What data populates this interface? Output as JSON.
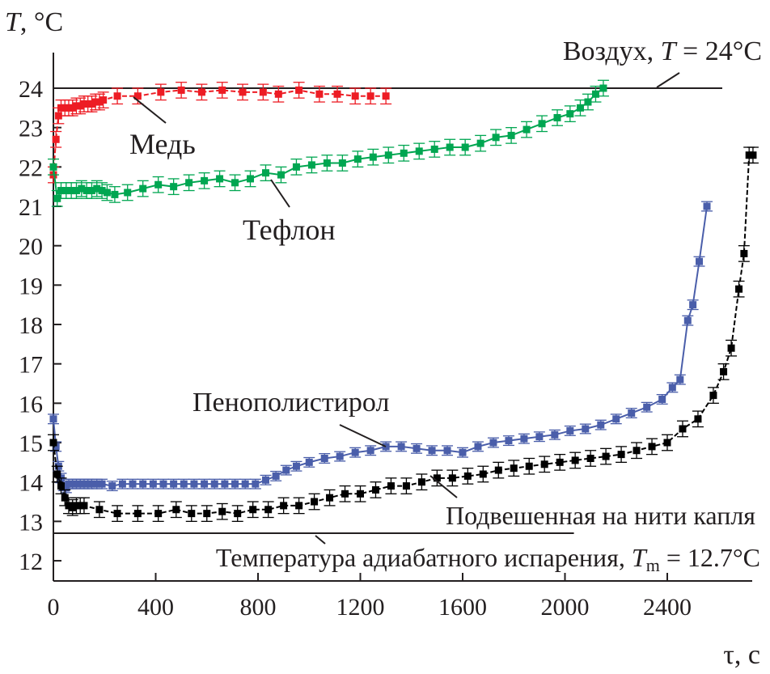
{
  "chart_data": {
    "type": "scatter",
    "ylabel_var": "T",
    "ylabel_unit": ", °C",
    "xlabel": "τ, с",
    "xlim": [
      0,
      2800
    ],
    "ylim": [
      11.7,
      25.2
    ],
    "xticks": [
      "0",
      "400",
      "800",
      "1200",
      "1600",
      "2000",
      "2400"
    ],
    "xtick_values": [
      0,
      400,
      800,
      1200,
      1600,
      2000,
      2400
    ],
    "yticks": [
      "12",
      "13",
      "14",
      "15",
      "16",
      "17",
      "18",
      "19",
      "20",
      "21",
      "22",
      "23",
      "24"
    ],
    "ytick_values": [
      12,
      13,
      14,
      15,
      16,
      17,
      18,
      19,
      20,
      21,
      22,
      23,
      24
    ],
    "reference_lines": [
      {
        "name": "air",
        "value": 24,
        "x_end": 2615,
        "label_prefix": "Воздух, ",
        "label_var": "T",
        "label_suffix": " = 24°C"
      },
      {
        "name": "adiabatic",
        "value": 12.7,
        "x_end": 2035,
        "label_prefix": "Температура адиабатного испарения, ",
        "label_var": "T",
        "label_sub": "m",
        "label_suffix": " = 12.7°C"
      }
    ],
    "series": [
      {
        "name": "Медь",
        "color": "#ed1c24",
        "error": 0.2,
        "x": [
          0,
          10,
          20,
          30,
          45,
          60,
          75,
          90,
          105,
          120,
          135,
          150,
          165,
          180,
          195,
          250,
          330,
          420,
          500,
          580,
          660,
          740,
          820,
          880,
          960,
          1040,
          1110,
          1180,
          1240,
          1300
        ],
        "y": [
          21.8,
          22.7,
          23.3,
          23.5,
          23.5,
          23.5,
          23.5,
          23.55,
          23.55,
          23.6,
          23.6,
          23.6,
          23.65,
          23.65,
          23.7,
          23.8,
          23.8,
          23.9,
          23.95,
          23.9,
          23.95,
          23.9,
          23.9,
          23.85,
          23.95,
          23.85,
          23.85,
          23.8,
          23.8,
          23.8
        ]
      },
      {
        "name": "Тефлон",
        "color": "#00a651",
        "error": 0.2,
        "x": [
          0,
          15,
          30,
          50,
          70,
          90,
          110,
          130,
          150,
          170,
          190,
          210,
          240,
          290,
          350,
          410,
          470,
          530,
          590,
          650,
          710,
          770,
          830,
          890,
          950,
          1010,
          1070,
          1130,
          1190,
          1250,
          1310,
          1370,
          1430,
          1490,
          1550,
          1610,
          1670,
          1730,
          1790,
          1850,
          1910,
          1970,
          2020,
          2060,
          2090,
          2120,
          2150
        ],
        "y": [
          22.0,
          21.2,
          21.4,
          21.4,
          21.4,
          21.4,
          21.45,
          21.4,
          21.4,
          21.45,
          21.4,
          21.35,
          21.3,
          21.35,
          21.45,
          21.55,
          21.5,
          21.6,
          21.65,
          21.7,
          21.6,
          21.7,
          21.85,
          21.8,
          22.0,
          22.05,
          22.1,
          22.1,
          22.2,
          22.25,
          22.3,
          22.35,
          22.4,
          22.45,
          22.5,
          22.5,
          22.6,
          22.75,
          22.8,
          22.95,
          23.1,
          23.25,
          23.35,
          23.5,
          23.65,
          23.85,
          24.0
        ]
      },
      {
        "name": "Пенополистирол",
        "color": "#4a5eaa",
        "error": 0.12,
        "x": [
          0,
          10,
          20,
          30,
          40,
          50,
          60,
          75,
          90,
          105,
          120,
          135,
          150,
          170,
          190,
          230,
          270,
          310,
          350,
          390,
          430,
          470,
          510,
          550,
          590,
          630,
          670,
          710,
          750,
          790,
          830,
          870,
          910,
          950,
          1000,
          1060,
          1120,
          1180,
          1240,
          1300,
          1360,
          1420,
          1480,
          1540,
          1600,
          1660,
          1720,
          1780,
          1840,
          1900,
          1960,
          2020,
          2080,
          2140,
          2200,
          2260,
          2320,
          2380,
          2420,
          2450,
          2480,
          2500,
          2525,
          2555
        ],
        "y": [
          15.6,
          14.9,
          14.4,
          14.1,
          13.9,
          13.85,
          13.95,
          13.95,
          13.95,
          13.95,
          13.95,
          13.95,
          13.95,
          13.95,
          13.95,
          13.9,
          13.95,
          13.95,
          13.95,
          13.95,
          13.95,
          13.95,
          13.95,
          13.95,
          13.95,
          13.95,
          13.95,
          13.95,
          13.95,
          13.95,
          14.05,
          14.15,
          14.3,
          14.4,
          14.5,
          14.6,
          14.65,
          14.75,
          14.8,
          14.9,
          14.9,
          14.85,
          14.8,
          14.8,
          14.75,
          14.9,
          15.0,
          15.05,
          15.1,
          15.15,
          15.2,
          15.3,
          15.35,
          15.45,
          15.6,
          15.75,
          15.9,
          16.1,
          16.4,
          16.6,
          18.1,
          18.5,
          19.6,
          21.0
        ]
      },
      {
        "name": "Подвешенная на нити капля",
        "color": "#000000",
        "error": 0.2,
        "x": [
          0,
          15,
          30,
          45,
          60,
          75,
          90,
          105,
          120,
          180,
          250,
          330,
          410,
          480,
          540,
          600,
          660,
          720,
          780,
          840,
          900,
          960,
          1020,
          1080,
          1140,
          1200,
          1260,
          1320,
          1380,
          1440,
          1500,
          1560,
          1620,
          1680,
          1740,
          1800,
          1860,
          1920,
          1980,
          2040,
          2100,
          2160,
          2220,
          2280,
          2340,
          2400,
          2460,
          2520,
          2580,
          2620,
          2650,
          2680,
          2700,
          2720,
          2735
        ],
        "y": [
          15.0,
          14.2,
          13.9,
          13.6,
          13.4,
          13.35,
          13.4,
          13.4,
          13.4,
          13.3,
          13.2,
          13.2,
          13.2,
          13.3,
          13.2,
          13.2,
          13.25,
          13.2,
          13.3,
          13.3,
          13.4,
          13.4,
          13.5,
          13.6,
          13.7,
          13.7,
          13.8,
          13.9,
          13.9,
          14.0,
          14.1,
          14.1,
          14.15,
          14.2,
          14.3,
          14.35,
          14.4,
          14.45,
          14.5,
          14.55,
          14.6,
          14.65,
          14.7,
          14.8,
          14.9,
          15.0,
          15.35,
          15.6,
          16.2,
          16.8,
          17.4,
          18.9,
          19.8,
          22.3,
          22.3
        ]
      }
    ],
    "annotations": [
      {
        "text": "Медь",
        "series": "Медь"
      },
      {
        "text": "Тефлон",
        "series": "Тефлон"
      },
      {
        "text": "Пенополистирол",
        "series": "Пенополистирол"
      },
      {
        "text": "Подвешенная на нити капля",
        "series": "Подвешенная на нити капля"
      }
    ]
  }
}
